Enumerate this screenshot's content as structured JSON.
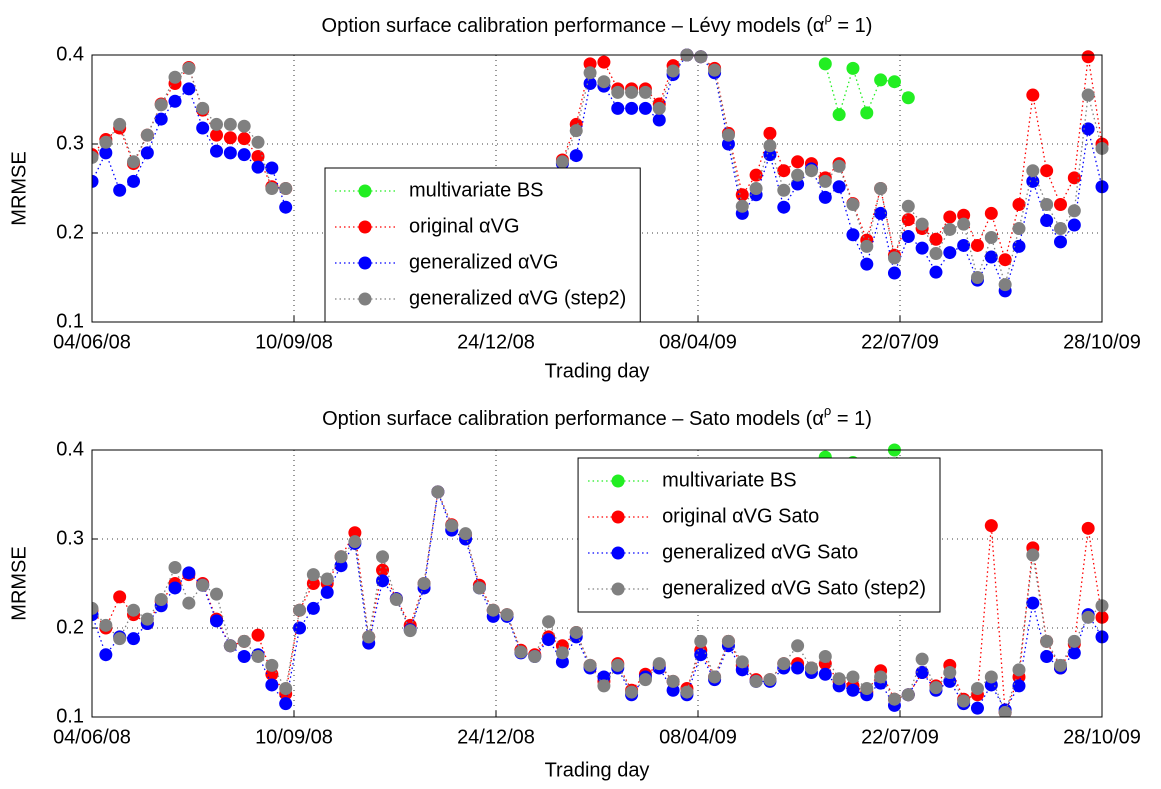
{
  "chart_data": [
    {
      "type": "line",
      "title": [
        "Option surface calibration performance – Lévy models (α",
        "ρ",
        " = 1)"
      ],
      "xlabel": "Trading day",
      "ylabel": "MRMSE",
      "legend": "center",
      "grid": true,
      "xlim": [
        0,
        365
      ],
      "xticks": [
        {
          "value": 0,
          "label": "04/06/08"
        },
        {
          "value": 73,
          "label": "10/09/08"
        },
        {
          "value": 146,
          "label": "24/12/08"
        },
        {
          "value": 219,
          "label": "08/04/09"
        },
        {
          "value": 292,
          "label": "22/07/09"
        },
        {
          "value": 365,
          "label": "28/10/09"
        }
      ],
      "ylim": [
        0.1,
        0.4
      ],
      "yticks": [
        0.1,
        0.2,
        0.3,
        0.4
      ],
      "x": [
        0,
        5,
        10,
        15,
        20,
        25,
        30,
        35,
        40,
        45,
        50,
        55,
        60,
        65,
        70,
        75,
        80,
        85,
        90,
        95,
        100,
        105,
        110,
        115,
        120,
        125,
        130,
        135,
        140,
        145,
        150,
        155,
        160,
        165,
        170,
        175,
        180,
        185,
        190,
        195,
        200,
        205,
        210,
        215,
        220,
        225,
        230,
        235,
        240,
        245,
        250,
        255,
        260,
        265,
        270,
        275,
        280,
        285,
        290,
        295,
        300,
        305,
        310,
        315,
        320,
        325,
        330,
        335,
        340,
        345,
        350,
        355,
        360,
        365
      ],
      "series": [
        {
          "name": "multivariate BS",
          "color": "#22ee22",
          "values": [
            null,
            null,
            null,
            null,
            null,
            null,
            null,
            null,
            null,
            null,
            null,
            null,
            null,
            null,
            null,
            null,
            null,
            null,
            null,
            null,
            null,
            null,
            null,
            null,
            null,
            null,
            null,
            null,
            null,
            null,
            null,
            null,
            null,
            null,
            null,
            null,
            null,
            null,
            null,
            null,
            null,
            null,
            null,
            null,
            null,
            null,
            null,
            null,
            null,
            null,
            null,
            null,
            null,
            0.39,
            0.333,
            0.385,
            0.335,
            0.372,
            0.37,
            0.352,
            null,
            null,
            null,
            null,
            null,
            null,
            null,
            null,
            null,
            null,
            null,
            null,
            null,
            null
          ]
        },
        {
          "name": "original αVG",
          "color": "#ff0000",
          "values": [
            0.288,
            0.305,
            0.318,
            0.278,
            0.31,
            0.345,
            0.368,
            0.386,
            0.338,
            0.31,
            0.307,
            0.306,
            0.286,
            0.252,
            0.25,
            null,
            null,
            null,
            null,
            null,
            null,
            null,
            null,
            null,
            null,
            null,
            null,
            null,
            null,
            null,
            null,
            null,
            null,
            null,
            0.282,
            0.322,
            0.39,
            0.392,
            0.362,
            0.362,
            0.362,
            0.345,
            0.388,
            0.4,
            0.398,
            0.385,
            0.312,
            0.243,
            0.265,
            0.312,
            0.27,
            0.28,
            0.278,
            0.262,
            0.278,
            0.233,
            0.192,
            0.25,
            0.175,
            0.215,
            0.205,
            0.193,
            0.218,
            0.22,
            0.186,
            0.222,
            0.17,
            0.232,
            0.355,
            0.27,
            0.232,
            0.262,
            0.398,
            0.3
          ]
        },
        {
          "name": "generalized αVG",
          "color": "#0000ff",
          "values": [
            0.258,
            0.29,
            0.248,
            0.258,
            0.29,
            0.328,
            0.348,
            0.362,
            0.318,
            0.292,
            0.29,
            0.288,
            0.274,
            0.273,
            0.229,
            null,
            null,
            null,
            null,
            null,
            null,
            null,
            null,
            null,
            null,
            null,
            null,
            null,
            null,
            null,
            null,
            null,
            null,
            null,
            0.278,
            0.287,
            0.368,
            0.365,
            0.34,
            0.34,
            0.34,
            0.327,
            0.378,
            0.4,
            0.398,
            0.38,
            0.3,
            0.222,
            0.243,
            0.288,
            0.229,
            0.255,
            0.272,
            0.24,
            0.252,
            0.198,
            0.165,
            0.222,
            0.155,
            0.196,
            0.183,
            0.156,
            0.178,
            0.186,
            0.147,
            0.173,
            0.135,
            0.185,
            0.258,
            0.214,
            0.19,
            0.209,
            0.317,
            0.252
          ]
        },
        {
          "name": "generalized αVG (step2)",
          "color": "#808080",
          "values": [
            0.285,
            0.302,
            0.322,
            0.28,
            0.31,
            0.344,
            0.375,
            0.385,
            0.34,
            0.322,
            0.322,
            0.32,
            0.302,
            0.25,
            0.25,
            null,
            null,
            null,
            null,
            null,
            null,
            null,
            null,
            null,
            null,
            null,
            null,
            null,
            null,
            null,
            null,
            null,
            null,
            null,
            0.28,
            0.315,
            0.38,
            0.37,
            0.358,
            0.358,
            0.358,
            0.34,
            0.382,
            0.4,
            0.398,
            0.383,
            0.31,
            0.23,
            0.25,
            0.298,
            0.248,
            0.265,
            0.27,
            0.258,
            0.275,
            0.232,
            0.185,
            0.25,
            0.172,
            0.23,
            0.21,
            0.177,
            0.204,
            0.21,
            0.15,
            0.195,
            0.142,
            0.205,
            0.27,
            0.232,
            0.205,
            0.225,
            0.355,
            0.295
          ]
        }
      ]
    },
    {
      "type": "line",
      "title": [
        "Option surface calibration performance – Sato models (α",
        "ρ",
        " = 1)"
      ],
      "xlabel": "Trading day",
      "ylabel": "MRMSE",
      "legend": "upper right",
      "grid": true,
      "xlim": [
        0,
        365
      ],
      "xticks": [
        {
          "value": 0,
          "label": "04/06/08"
        },
        {
          "value": 73,
          "label": "10/09/08"
        },
        {
          "value": 146,
          "label": "24/12/08"
        },
        {
          "value": 219,
          "label": "08/04/09"
        },
        {
          "value": 292,
          "label": "22/07/09"
        },
        {
          "value": 365,
          "label": "28/10/09"
        }
      ],
      "ylim": [
        0.1,
        0.4
      ],
      "yticks": [
        0.1,
        0.2,
        0.3,
        0.4
      ],
      "x": [
        0,
        5,
        10,
        15,
        20,
        25,
        30,
        35,
        40,
        45,
        50,
        55,
        60,
        65,
        70,
        75,
        80,
        85,
        90,
        95,
        100,
        105,
        110,
        115,
        120,
        125,
        130,
        135,
        140,
        145,
        150,
        155,
        160,
        165,
        170,
        175,
        180,
        185,
        190,
        195,
        200,
        205,
        210,
        215,
        220,
        225,
        230,
        235,
        240,
        245,
        250,
        255,
        260,
        265,
        270,
        275,
        280,
        285,
        290,
        295,
        300,
        305,
        310,
        315,
        320,
        325,
        330,
        335,
        340,
        345,
        350,
        355,
        360,
        365
      ],
      "series": [
        {
          "name": "multivariate BS",
          "color": "#22ee22",
          "values": [
            null,
            null,
            null,
            null,
            null,
            null,
            null,
            null,
            null,
            null,
            null,
            null,
            null,
            null,
            null,
            null,
            null,
            null,
            null,
            null,
            null,
            null,
            null,
            null,
            null,
            null,
            null,
            null,
            null,
            null,
            null,
            null,
            null,
            null,
            null,
            null,
            null,
            null,
            null,
            null,
            null,
            null,
            null,
            null,
            null,
            null,
            null,
            null,
            null,
            null,
            null,
            null,
            null,
            0.392,
            0.375,
            0.386,
            0.37,
            0.38,
            0.4,
            0.352,
            null,
            null,
            null,
            null,
            null,
            null,
            null,
            null,
            null,
            null,
            null,
            null,
            null,
            null
          ]
        },
        {
          "name": "original αVG Sato",
          "color": "#ff0000",
          "values": [
            0.22,
            0.2,
            0.235,
            0.215,
            0.205,
            0.23,
            0.25,
            0.26,
            0.25,
            0.21,
            0.18,
            0.185,
            0.192,
            0.148,
            0.126,
            0.22,
            0.25,
            0.25,
            0.28,
            0.307,
            0.19,
            0.265,
            0.233,
            0.203,
            0.25,
            0.353,
            0.316,
            0.305,
            0.248,
            0.22,
            0.215,
            0.175,
            0.17,
            0.19,
            0.18,
            0.195,
            0.158,
            0.14,
            0.16,
            0.13,
            0.148,
            0.158,
            0.14,
            0.132,
            0.175,
            0.145,
            0.185,
            0.158,
            0.142,
            0.142,
            0.16,
            0.16,
            0.155,
            0.16,
            0.14,
            0.135,
            0.128,
            0.152,
            0.12,
            0.125,
            0.15,
            0.135,
            0.158,
            0.12,
            0.125,
            0.315,
            0.105,
            0.145,
            0.29,
            0.185,
            0.155,
            0.182,
            0.312,
            0.212
          ]
        },
        {
          "name": "generalized αVG Sato",
          "color": "#0000ff",
          "values": [
            0.215,
            0.17,
            0.19,
            0.188,
            0.205,
            0.225,
            0.245,
            0.262,
            0.248,
            0.208,
            0.18,
            0.168,
            0.17,
            0.136,
            0.115,
            0.2,
            0.222,
            0.24,
            0.27,
            0.295,
            0.183,
            0.253,
            0.233,
            0.198,
            0.245,
            0.353,
            0.31,
            0.3,
            0.245,
            0.213,
            0.213,
            0.172,
            0.168,
            0.187,
            0.162,
            0.19,
            0.155,
            0.145,
            0.155,
            0.125,
            0.145,
            0.155,
            0.13,
            0.125,
            0.17,
            0.142,
            0.18,
            0.153,
            0.14,
            0.14,
            0.155,
            0.155,
            0.15,
            0.148,
            0.135,
            0.13,
            0.125,
            0.138,
            0.113,
            0.125,
            0.15,
            0.13,
            0.14,
            0.115,
            0.11,
            0.136,
            0.108,
            0.135,
            0.228,
            0.168,
            0.155,
            0.172,
            0.215,
            0.19
          ]
        },
        {
          "name": "generalized αVG Sato (step2)",
          "color": "#808080",
          "values": [
            0.222,
            0.203,
            0.188,
            0.22,
            0.21,
            0.232,
            0.268,
            0.228,
            0.248,
            0.238,
            0.18,
            0.185,
            0.168,
            0.158,
            0.132,
            0.22,
            0.26,
            0.255,
            0.28,
            0.297,
            0.19,
            0.28,
            0.232,
            0.197,
            0.25,
            0.353,
            0.315,
            0.306,
            0.245,
            0.22,
            0.215,
            0.173,
            0.168,
            0.207,
            0.172,
            0.195,
            0.158,
            0.135,
            0.158,
            0.128,
            0.142,
            0.16,
            0.14,
            0.128,
            0.185,
            0.145,
            0.185,
            0.162,
            0.14,
            0.142,
            0.16,
            0.18,
            0.155,
            0.168,
            0.143,
            0.145,
            0.132,
            0.145,
            0.12,
            0.125,
            0.165,
            0.133,
            0.15,
            0.118,
            0.132,
            0.145,
            0.105,
            0.153,
            0.282,
            0.185,
            0.158,
            0.185,
            0.212,
            0.225
          ]
        }
      ]
    }
  ]
}
